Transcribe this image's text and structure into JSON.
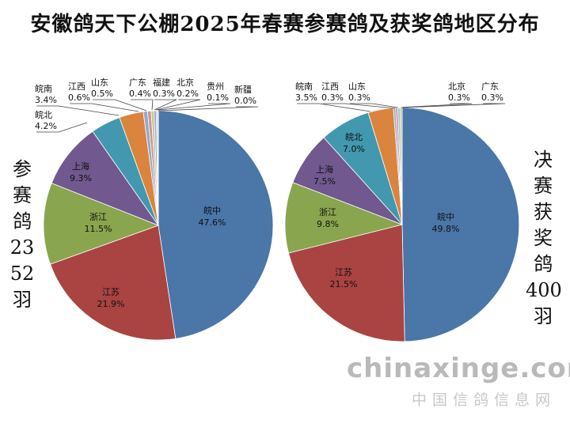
{
  "title": "安徽鸽天下公棚2025年春赛参赛鸽及获奖鸽地区分布",
  "left_side_label": [
    "参",
    "赛",
    "鸽",
    "23",
    "52",
    "羽"
  ],
  "right_side_label": [
    "决",
    "赛",
    "获",
    "奖",
    "鸽",
    "400",
    "羽"
  ],
  "watermark": "chinaxinge.com",
  "watermark_cn": "中国信鸽信息网",
  "colors": {
    "皖中": "#4a76a8",
    "江苏": "#a94442",
    "浙江": "#89a54e",
    "上海": "#71588f",
    "皖北": "#4298af",
    "皖南": "#db843d",
    "江西": "#93a9cf",
    "山东": "#d19392",
    "广东": "#b9cd96",
    "福建": "#a99bbd",
    "北京": "#91c3d5",
    "贵州": "#f9b590",
    "新疆": "#ffffff"
  },
  "chart_data": [
    {
      "type": "pie",
      "name": "参赛鸽",
      "slices": [
        {
          "label": "皖中",
          "value": 47.6,
          "text": "47.6%"
        },
        {
          "label": "江苏",
          "value": 21.9,
          "text": "21.9%"
        },
        {
          "label": "浙江",
          "value": 11.5,
          "text": "11.5%"
        },
        {
          "label": "上海",
          "value": 9.3,
          "text": "9.3%"
        },
        {
          "label": "皖北",
          "value": 4.2,
          "text": "4.2%"
        },
        {
          "label": "皖南",
          "value": 3.4,
          "text": "3.4%"
        },
        {
          "label": "江西",
          "value": 0.6,
          "text": "0.6%"
        },
        {
          "label": "山东",
          "value": 0.5,
          "text": "0.5%"
        },
        {
          "label": "广东",
          "value": 0.4,
          "text": "0.4%"
        },
        {
          "label": "福建",
          "value": 0.3,
          "text": "0.3%"
        },
        {
          "label": "北京",
          "value": 0.2,
          "text": "0.2%"
        },
        {
          "label": "贵州",
          "value": 0.1,
          "text": "0.1%"
        },
        {
          "label": "新疆",
          "value": 0.0,
          "text": "0.0%"
        }
      ]
    },
    {
      "type": "pie",
      "name": "决赛获奖鸽",
      "slices": [
        {
          "label": "皖中",
          "value": 49.8,
          "text": "49.8%"
        },
        {
          "label": "江苏",
          "value": 21.5,
          "text": "21.5%"
        },
        {
          "label": "浙江",
          "value": 9.8,
          "text": "9.8%"
        },
        {
          "label": "上海",
          "value": 7.5,
          "text": "7.5%"
        },
        {
          "label": "皖北",
          "value": 7.0,
          "text": "7.0%"
        },
        {
          "label": "皖南",
          "value": 3.5,
          "text": "3.5%"
        },
        {
          "label": "江西",
          "value": 0.3,
          "text": "0.3%"
        },
        {
          "label": "山东",
          "value": 0.3,
          "text": "0.3%"
        },
        {
          "label": "北京",
          "value": 0.3,
          "text": "0.3%"
        },
        {
          "label": "广东",
          "value": 0.3,
          "text": "0.3%"
        }
      ]
    }
  ]
}
